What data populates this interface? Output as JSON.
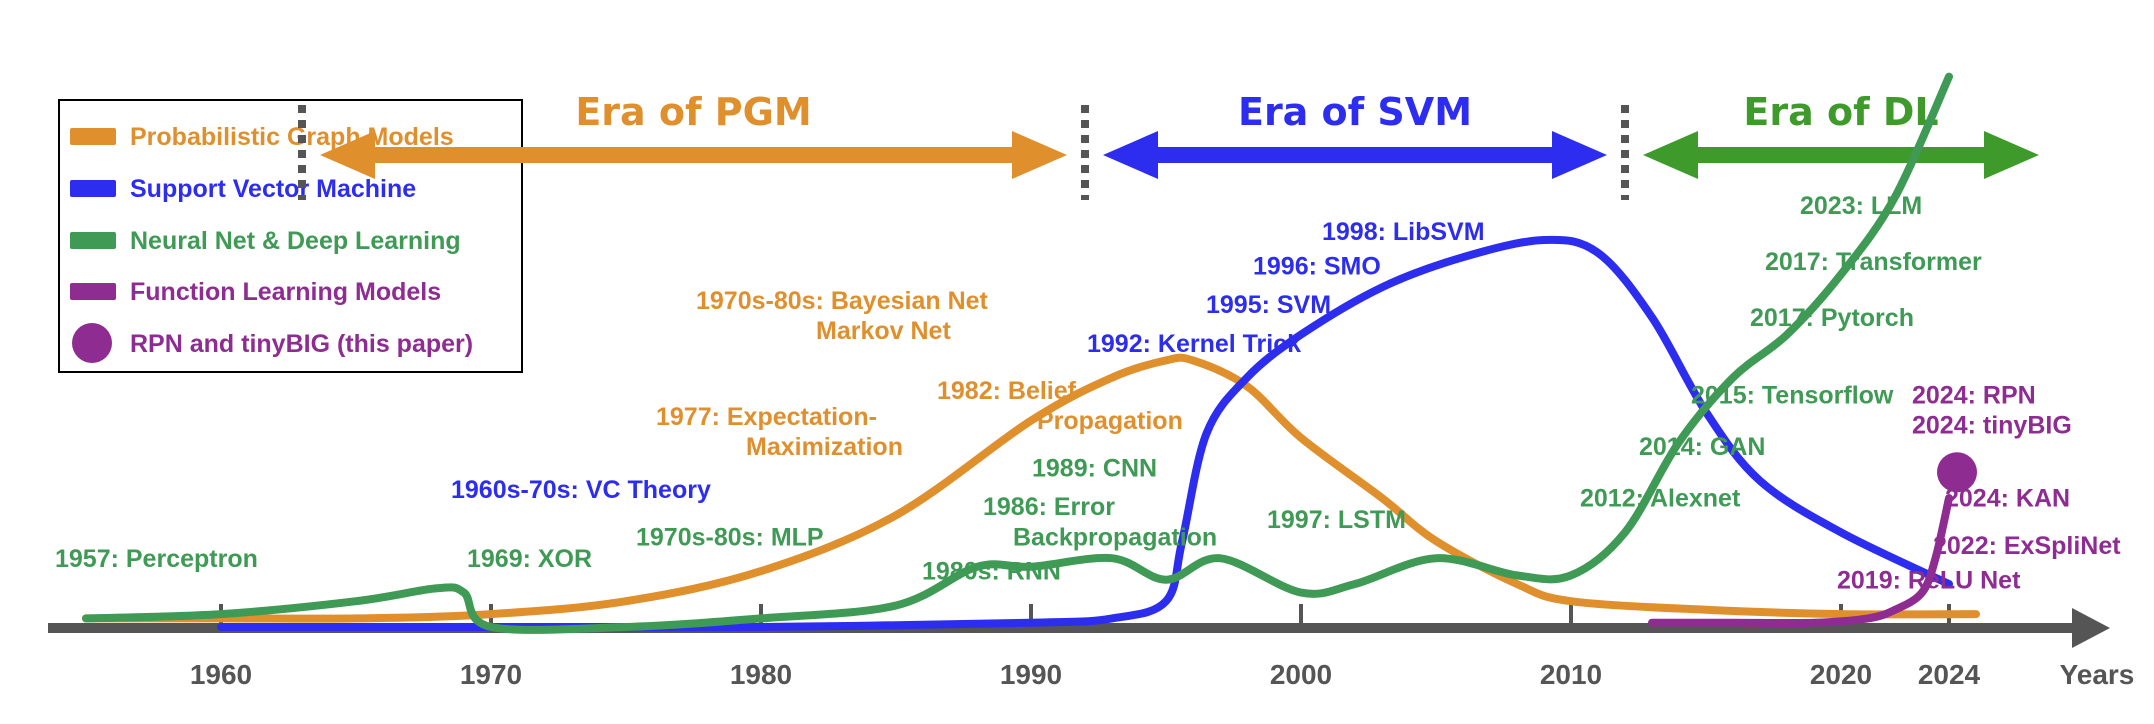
{
  "colors": {
    "pgm": "#E08F2D",
    "svm": "#2D2DF0",
    "dl": "#3F9A55",
    "flm": "#8E2C92",
    "axis": "#555555",
    "era_dl_arrow": "#3E9A2A"
  },
  "legend": {
    "items": [
      {
        "label": "Probabilistic Graph Models",
        "color": "#E08F2D",
        "marker": "bar"
      },
      {
        "label": "Support Vector Machine",
        "color": "#2D2DF0",
        "marker": "bar"
      },
      {
        "label": "Neural Net & Deep Learning",
        "color": "#3F9A55",
        "marker": "bar"
      },
      {
        "label": "Function Learning Models",
        "color": "#8E2C92",
        "marker": "bar"
      },
      {
        "label": "RPN and tinyBIG (this paper)",
        "color": "#8E2C92",
        "marker": "dot"
      }
    ]
  },
  "eras": [
    {
      "title": "Era of PGM",
      "start": 1963,
      "end": 1992,
      "color": "#E08F2D"
    },
    {
      "title": "Era of SVM",
      "start": 1992,
      "end": 2012,
      "color": "#2D2DF0"
    },
    {
      "title": "Era of DL",
      "start": 2012,
      "end": 2028,
      "color": "#3E9A2A"
    }
  ],
  "axis": {
    "label": "Years",
    "ticks": [
      "1960",
      "1970",
      "1980",
      "1990",
      "2000",
      "2010",
      "2020",
      "2024"
    ],
    "tick_values": [
      1960,
      1970,
      1980,
      1990,
      2000,
      2010,
      2020,
      2024
    ]
  },
  "chart_data": {
    "type": "line",
    "title": "",
    "xlabel": "Years",
    "ylabel": "",
    "x_range": [
      1954,
      2028
    ],
    "y_range": [
      0,
      100
    ],
    "series": [
      {
        "name": "Probabilistic Graph Models",
        "color": "#E08F2D",
        "x": [
          1955,
          1960,
          1965,
          1970,
          1975,
          1980,
          1985,
          1990,
          1993,
          1995,
          1996,
          1998,
          2000,
          2003,
          2005,
          2008,
          2010,
          2015,
          2020,
          2025
        ],
        "y": [
          2,
          2,
          2,
          3,
          6,
          13,
          26,
          48,
          58,
          62,
          62,
          56,
          44,
          30,
          20,
          10,
          6,
          4,
          3,
          3
        ]
      },
      {
        "name": "Support Vector Machine",
        "color": "#2D2DF0",
        "x": [
          1960,
          1970,
          1980,
          1990,
          1993,
          1995,
          1995.6,
          1996.5,
          1998,
          2000,
          2003,
          2006,
          2009,
          2011,
          2013,
          2015,
          2017,
          2020,
          2024
        ],
        "y": [
          0,
          0,
          0,
          1,
          2,
          6,
          20,
          45,
          58,
          68,
          79,
          86,
          90,
          87,
          72,
          50,
          34,
          22,
          10
        ]
      },
      {
        "name": "Neural Net & Deep Learning",
        "color": "#3F9A55",
        "x": [
          1955,
          1960,
          1965,
          1968,
          1969,
          1970,
          1975,
          1980,
          1985,
          1988,
          1990,
          1993,
          1995,
          1997,
          2000,
          2002,
          2005,
          2008,
          2010,
          2012,
          2014,
          2016,
          2018,
          2020,
          2022,
          2024
        ],
        "y": [
          2,
          3,
          6,
          9,
          8,
          0,
          0,
          2,
          5,
          14,
          14,
          16,
          11,
          16,
          8,
          10,
          16,
          12,
          12,
          22,
          43,
          58,
          68,
          82,
          100,
          128
        ]
      },
      {
        "name": "Function Learning Models",
        "color": "#8E2C92",
        "x": [
          2013,
          2016,
          2019,
          2021,
          2022,
          2023,
          2023.5,
          2024
        ],
        "y": [
          1,
          1,
          1,
          2,
          4,
          8,
          16,
          30
        ]
      }
    ],
    "highlight_point": {
      "label": "RPN and tinyBIG (this paper)",
      "x": 2024,
      "y": 36,
      "color": "#8E2C92"
    },
    "annotations": [
      {
        "text": "1957: Perceptron",
        "series": "Neural Net & Deep Learning",
        "year": 1957,
        "level": 14
      },
      {
        "text": "1969: XOR",
        "series": "Neural Net & Deep Learning",
        "year": 1968,
        "level": 14
      },
      {
        "text": "1960s-70s: VC Theory",
        "series": "Support Vector Machine",
        "year": 1965,
        "level": 30
      },
      {
        "text": "1970s-80s: MLP",
        "series": "Neural Net & Deep Learning",
        "year": 1975,
        "level": 19
      },
      {
        "text": "1977: Expectation-",
        "series": "Probabilistic Graph Models",
        "year": 1975,
        "level": 47
      },
      {
        "text": "Maximization",
        "series": "Probabilistic Graph Models",
        "year": 1975,
        "level": 40
      },
      {
        "text": "1970s-80s: Bayesian Net",
        "series": "Probabilistic Graph Models",
        "year": 1980,
        "level": 74
      },
      {
        "text": "Markov Net",
        "series": "Probabilistic Graph Models",
        "year": 1980,
        "level": 67
      },
      {
        "text": "1980s: RNN",
        "series": "Neural Net & Deep Learning",
        "year": 1983,
        "level": 11
      },
      {
        "text": "1982: Belief",
        "series": "Probabilistic Graph Models",
        "year": 1983,
        "level": 53
      },
      {
        "text": "Propagation",
        "series": "Probabilistic Graph Models",
        "year": 1983,
        "level": 46
      },
      {
        "text": "1986: Error",
        "series": "Neural Net & Deep Learning",
        "year": 1986,
        "level": 26
      },
      {
        "text": "Backpropagation",
        "series": "Neural Net & Deep Learning",
        "year": 1986,
        "level": 19
      },
      {
        "text": "1989: CNN",
        "series": "Neural Net & Deep Learning",
        "year": 1990,
        "level": 35
      },
      {
        "text": "1992: Kernel Trick",
        "series": "Support Vector Machine",
        "year": 1992,
        "level": 64
      },
      {
        "text": "1995: SVM",
        "series": "Support Vector Machine",
        "year": 1995,
        "level": 73
      },
      {
        "text": "1996: SMO",
        "series": "Support Vector Machine",
        "year": 1996,
        "level": 82
      },
      {
        "text": "1998: LibSVM",
        "series": "Support Vector Machine",
        "year": 1998,
        "level": 90
      },
      {
        "text": "1997: LSTM",
        "series": "Neural Net & Deep Learning",
        "year": 1998,
        "level": 23
      },
      {
        "text": "2012: Alexnet",
        "series": "Neural Net & Deep Learning",
        "year": 2012,
        "level": 28
      },
      {
        "text": "2014: GAN",
        "series": "Neural Net & Deep Learning",
        "year": 2014,
        "level": 40
      },
      {
        "text": "2015: Tensorflow",
        "series": "Neural Net & Deep Learning",
        "year": 2015,
        "level": 52
      },
      {
        "text": "2017: Pytorch",
        "series": "Neural Net & Deep Learning",
        "year": 2017,
        "level": 70
      },
      {
        "text": "2017: Transformer",
        "series": "Neural Net & Deep Learning",
        "year": 2017,
        "level": 83
      },
      {
        "text": "2023: LLM",
        "series": "Neural Net & Deep Learning",
        "year": 2022,
        "level": 96
      },
      {
        "text": "2019: ReLU Net",
        "series": "Function Learning Models",
        "year": 2018,
        "level": 9
      },
      {
        "text": "2022: ExSpliNet",
        "series": "Function Learning Models",
        "year": 2021,
        "level": 17
      },
      {
        "text": "2024: KAN",
        "series": "Function Learning Models",
        "year": 2022,
        "level": 28
      },
      {
        "text": "2024: RPN",
        "series": "Function Learning Models",
        "year": 2024,
        "level": 52
      },
      {
        "text": "2024: tinyBIG",
        "series": "Function Learning Models",
        "year": 2024,
        "level": 45
      }
    ]
  }
}
